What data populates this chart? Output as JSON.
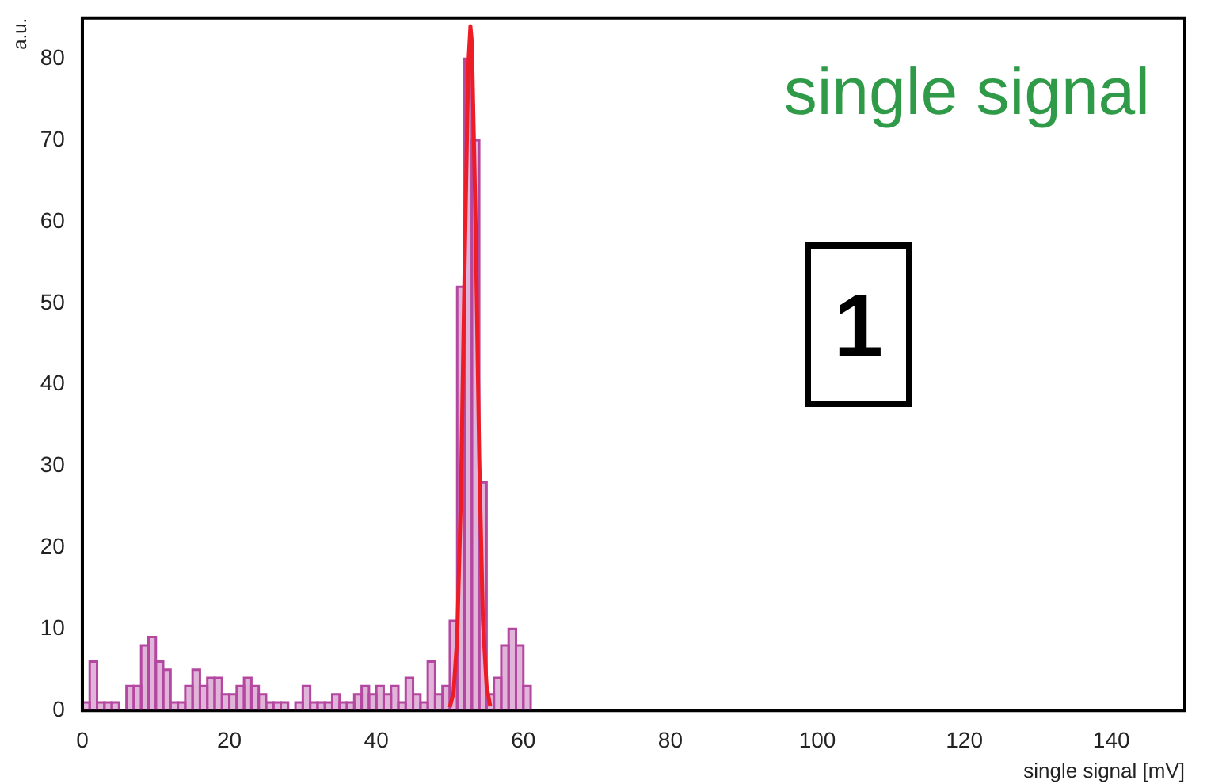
{
  "chart_data": {
    "type": "histogram",
    "xlabel": "single signal [mV]",
    "ylabel": "a.u.",
    "annotations": [
      "single signal",
      "1"
    ],
    "bins": [
      0,
      1,
      2,
      3,
      4,
      5,
      6,
      7,
      8,
      9,
      10,
      11,
      12,
      13,
      14,
      15,
      16,
      17,
      18,
      19,
      20,
      21,
      22,
      23,
      24,
      25,
      26,
      27,
      28,
      29,
      30,
      31,
      32,
      33,
      34,
      35,
      36,
      37,
      38,
      39,
      40,
      41,
      42,
      43,
      44,
      45,
      46,
      47,
      48,
      49,
      50,
      51,
      52,
      53,
      54,
      55,
      56,
      57,
      58,
      59,
      60,
      61
    ],
    "values": [
      1,
      6,
      1,
      1,
      1,
      0,
      3,
      3,
      8,
      9,
      6,
      5,
      1,
      1,
      3,
      5,
      3,
      4,
      4,
      2,
      2,
      3,
      4,
      3,
      2,
      1,
      1,
      1,
      0,
      1,
      3,
      1,
      1,
      1,
      2,
      1,
      1,
      2,
      3,
      2,
      3,
      2,
      3,
      1,
      4,
      2,
      1,
      6,
      2,
      3,
      11,
      52,
      80,
      70,
      28,
      2,
      4,
      8,
      10,
      8,
      3
    ],
    "color": "#b4479f",
    "series": [
      {
        "type": "line",
        "color": "#ee1c24",
        "x": [
          50,
          50.5,
          51,
          51.5,
          52,
          52.5,
          52.8,
          53,
          53.5,
          54,
          54.5,
          55,
          55.5
        ],
        "values": [
          0.4,
          2.2,
          8.9,
          26,
          54,
          79,
          84,
          82,
          60,
          31,
          11,
          3,
          0.5
        ]
      }
    ],
    "xlim": [
      0,
      150
    ],
    "xticks": [
      0,
      20,
      40,
      60,
      80,
      100,
      120,
      140
    ],
    "ylim": [
      0,
      85
    ],
    "yticks": [
      0,
      10,
      20,
      30,
      40,
      50,
      60,
      70,
      80
    ],
    "grid": false,
    "legend": false
  }
}
